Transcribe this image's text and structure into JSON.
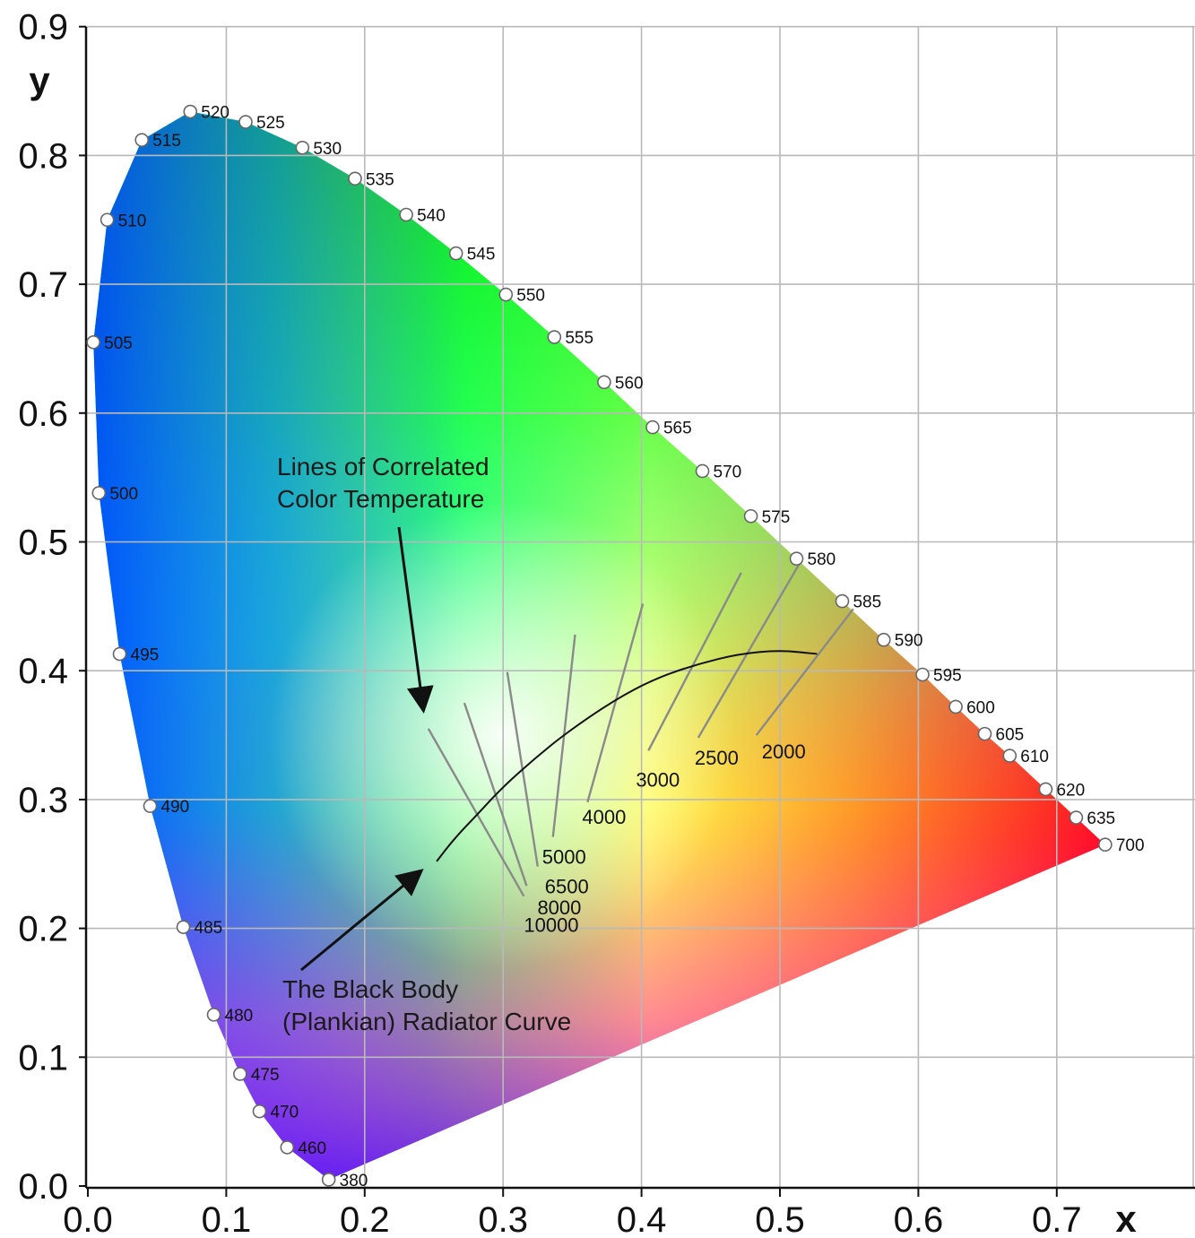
{
  "chart_data": {
    "type": "scatter",
    "xlabel": "x",
    "ylabel": "y",
    "xlim": [
      0.0,
      0.75
    ],
    "ylim": [
      0.0,
      0.9
    ],
    "x_ticks": [
      "0.0",
      "0.1",
      "0.2",
      "0.3",
      "0.4",
      "0.5",
      "0.6",
      "0.7"
    ],
    "y_ticks": [
      "0.0",
      "0.1",
      "0.2",
      "0.3",
      "0.4",
      "0.5",
      "0.6",
      "0.7",
      "0.8",
      "0.9"
    ],
    "grid": true,
    "spectral_locus": [
      {
        "label": "380",
        "x": 0.174,
        "y": 0.005
      },
      {
        "label": "460",
        "x": 0.144,
        "y": 0.03
      },
      {
        "label": "470",
        "x": 0.124,
        "y": 0.058
      },
      {
        "label": "475",
        "x": 0.11,
        "y": 0.087
      },
      {
        "label": "480",
        "x": 0.091,
        "y": 0.133
      },
      {
        "label": "485",
        "x": 0.069,
        "y": 0.201
      },
      {
        "label": "490",
        "x": 0.045,
        "y": 0.295
      },
      {
        "label": "495",
        "x": 0.023,
        "y": 0.413
      },
      {
        "label": "500",
        "x": 0.008,
        "y": 0.538
      },
      {
        "label": "505",
        "x": 0.004,
        "y": 0.655
      },
      {
        "label": "510",
        "x": 0.014,
        "y": 0.75
      },
      {
        "label": "515",
        "x": 0.039,
        "y": 0.812
      },
      {
        "label": "520",
        "x": 0.074,
        "y": 0.834
      },
      {
        "label": "525",
        "x": 0.114,
        "y": 0.826
      },
      {
        "label": "530",
        "x": 0.155,
        "y": 0.806
      },
      {
        "label": "535",
        "x": 0.193,
        "y": 0.782
      },
      {
        "label": "540",
        "x": 0.23,
        "y": 0.754
      },
      {
        "label": "545",
        "x": 0.266,
        "y": 0.724
      },
      {
        "label": "550",
        "x": 0.302,
        "y": 0.692
      },
      {
        "label": "555",
        "x": 0.337,
        "y": 0.659
      },
      {
        "label": "560",
        "x": 0.373,
        "y": 0.624
      },
      {
        "label": "565",
        "x": 0.408,
        "y": 0.589
      },
      {
        "label": "570",
        "x": 0.444,
        "y": 0.555
      },
      {
        "label": "575",
        "x": 0.479,
        "y": 0.52
      },
      {
        "label": "580",
        "x": 0.512,
        "y": 0.487
      },
      {
        "label": "585",
        "x": 0.545,
        "y": 0.454
      },
      {
        "label": "590",
        "x": 0.575,
        "y": 0.424
      },
      {
        "label": "595",
        "x": 0.603,
        "y": 0.397
      },
      {
        "label": "600",
        "x": 0.627,
        "y": 0.372
      },
      {
        "label": "605",
        "x": 0.648,
        "y": 0.351
      },
      {
        "label": "610",
        "x": 0.666,
        "y": 0.334
      },
      {
        "label": "620",
        "x": 0.692,
        "y": 0.308
      },
      {
        "label": "635",
        "x": 0.714,
        "y": 0.286
      },
      {
        "label": "700",
        "x": 0.735,
        "y": 0.265
      }
    ],
    "planckian_locus": [
      {
        "x": 0.252,
        "y": 0.252
      },
      {
        "x": 0.265,
        "y": 0.27
      },
      {
        "x": 0.281,
        "y": 0.288
      },
      {
        "x": 0.3,
        "y": 0.31
      },
      {
        "x": 0.323,
        "y": 0.332
      },
      {
        "x": 0.346,
        "y": 0.352
      },
      {
        "x": 0.38,
        "y": 0.377
      },
      {
        "x": 0.41,
        "y": 0.394
      },
      {
        "x": 0.44,
        "y": 0.405
      },
      {
        "x": 0.47,
        "y": 0.413
      },
      {
        "x": 0.5,
        "y": 0.416
      },
      {
        "x": 0.527,
        "y": 0.413
      }
    ],
    "cct_lines": [
      {
        "label": "10000",
        "from": [
          0.246,
          0.355
        ],
        "to": [
          0.315,
          0.225
        ]
      },
      {
        "label": "8000",
        "from": [
          0.272,
          0.375
        ],
        "to": [
          0.317,
          0.233
        ]
      },
      {
        "label": "6500",
        "from": [
          0.303,
          0.399
        ],
        "to": [
          0.325,
          0.248
        ]
      },
      {
        "label": "5000",
        "from": [
          0.352,
          0.428
        ],
        "to": [
          0.336,
          0.271
        ]
      },
      {
        "label": "4000",
        "from": [
          0.401,
          0.452
        ],
        "to": [
          0.361,
          0.298
        ]
      },
      {
        "label": "3000",
        "from": [
          0.472,
          0.476
        ],
        "to": [
          0.405,
          0.338
        ]
      },
      {
        "label": "2500",
        "from": [
          0.514,
          0.483
        ],
        "to": [
          0.441,
          0.348
        ]
      },
      {
        "label": "2000",
        "from": [
          0.553,
          0.448
        ],
        "to": [
          0.483,
          0.35
        ]
      }
    ],
    "annotations": [
      {
        "line1": "Lines of Correlated",
        "line2": "Color Temperature"
      },
      {
        "line1": "The Black Body",
        "line2": "(Plankian) Radiator Curve"
      }
    ]
  }
}
